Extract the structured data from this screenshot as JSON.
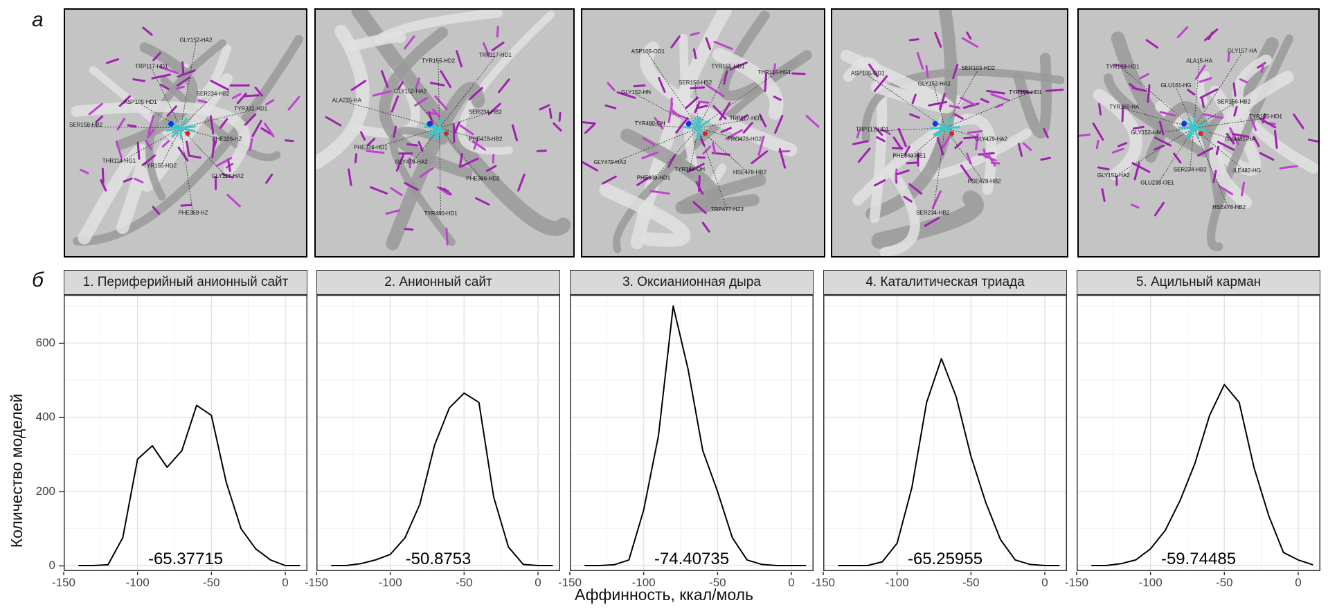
{
  "panel_labels": {
    "top": "а",
    "bottom": "б"
  },
  "molecular_views": [
    {
      "labels": [
        "PHE326-HZ",
        "GLY117-HA2",
        "PHE369-HZ",
        "TYR155-HD2",
        "THR114-HG1",
        "SER158-HB2",
        "ASP105-HD1",
        "TRP117-HD1",
        "GLY152-HA2",
        "SER234-HB2",
        "TYR332-HD1"
      ]
    },
    {
      "labels": [
        "PHE478-HB2",
        "PHE366-HD2",
        "TYR480-HD1",
        "GLY479-HA2",
        "PHE326-HD1",
        "ALA235-HA",
        "GLY152-HA2",
        "TYR155-HD2",
        "TRP117-HD1",
        "SER234-HB2"
      ]
    },
    {
      "labels": [
        "PRO478-HG2",
        "HSE478-HB2",
        "TRP477-HZ3",
        "TYR368-OH",
        "PHE369-HD1",
        "GLY479-HA2",
        "TYR480-OH",
        "GLY152-HN",
        "ASP105-OD1",
        "SER156-HB2",
        "TYR155-HD1",
        "THR114-HG1",
        "TRP117-HD1"
      ]
    },
    {
      "labels": [
        "GLY479-HA2",
        "HSE478-HB2",
        "SER234-HB2",
        "PHE369-HE1",
        "TRP117-HD1",
        "ASP105-OD1",
        "GLY152-HA2",
        "SER103-HD2",
        "TYR155-HD1"
      ]
    },
    {
      "labels": [
        "GLU481-HA",
        "ILE482-HG",
        "HSE478-HB2",
        "SER234-HB2",
        "GLU233-OE1",
        "GLY151-HA2",
        "GLY152-HN",
        "TYR160-HA",
        "TYR163-HD1",
        "GLU161-HG",
        "ALA15-HA",
        "GLY157-HA",
        "SER156-HB2",
        "TYR155-HD1"
      ]
    }
  ],
  "axis_labels": {
    "y": "Количество моделей",
    "x": "Аффинность, ккал/моль"
  },
  "chart_data": {
    "type": "line",
    "xlabel": "Аффинность, ккал/моль",
    "ylabel": "Количество моделей",
    "xlim": [
      -150,
      15
    ],
    "ylim": [
      -15,
      730
    ],
    "x_ticks": [
      "-150",
      "-100",
      "-50",
      "0"
    ],
    "y_ticks": [
      "0",
      "200",
      "400",
      "600"
    ],
    "x": [
      -140,
      -130,
      -120,
      -110,
      -100,
      -90,
      -80,
      -70,
      -60,
      -50,
      -40,
      -30,
      -20,
      -10,
      0,
      10
    ],
    "grid": true,
    "line_color": "#000000",
    "facets": [
      {
        "title": "1. Периферийный анионный сайт",
        "mean_label": "-65.37715",
        "values": [
          0,
          0,
          2,
          75,
          287,
          323,
          265,
          310,
          432,
          405,
          225,
          100,
          45,
          15,
          0,
          0
        ]
      },
      {
        "title": "2. Анионный сайт",
        "mean_label": "-50.8753",
        "values": [
          0,
          0,
          5,
          15,
          30,
          75,
          165,
          325,
          425,
          465,
          440,
          185,
          50,
          3,
          0,
          0
        ]
      },
      {
        "title": "3. Оксианионная дыра",
        "mean_label": "-74.40735",
        "values": [
          0,
          0,
          2,
          15,
          150,
          350,
          700,
          530,
          310,
          200,
          75,
          15,
          3,
          0,
          0,
          0
        ]
      },
      {
        "title": "4. Каталитическая триада",
        "mean_label": "-65.25955",
        "values": [
          0,
          0,
          0,
          10,
          60,
          210,
          440,
          558,
          455,
          295,
          170,
          70,
          15,
          3,
          0,
          0
        ]
      },
      {
        "title": "5. Ацильный карман",
        "mean_label": "-59.74485",
        "values": [
          0,
          0,
          5,
          15,
          45,
          95,
          175,
          275,
          405,
          488,
          440,
          265,
          135,
          35,
          15,
          2
        ]
      }
    ]
  }
}
